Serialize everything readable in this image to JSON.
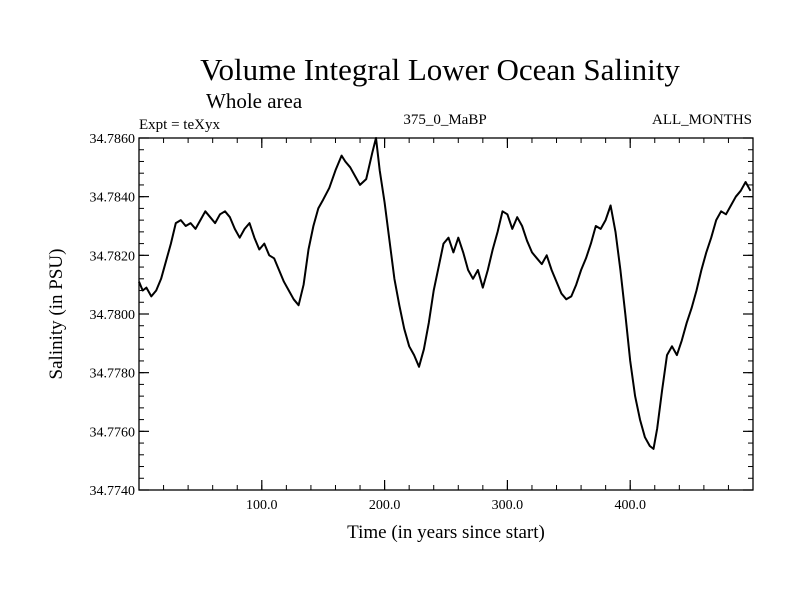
{
  "chart_data": {
    "type": "line",
    "title": "Volume Integral Lower Ocean Salinity",
    "subtitle": "Whole area",
    "annotations": {
      "left": "Expt = teXyx",
      "center": "375_0_MaBP",
      "right": "ALL_MONTHS"
    },
    "xlabel": "Time (in years since start)",
    "ylabel": "Salinity (in PSU)",
    "xlim": [
      0,
      500
    ],
    "ylim": [
      34.774,
      34.786
    ],
    "xticks": [
      100,
      200,
      300,
      400
    ],
    "xtick_labels": [
      "100.0",
      "200.0",
      "300.0",
      "400.0"
    ],
    "yticks": [
      34.774,
      34.776,
      34.778,
      34.78,
      34.782,
      34.784,
      34.786
    ],
    "ytick_labels": [
      "34.7740",
      "34.7760",
      "34.7780",
      "34.7800",
      "34.7820",
      "34.7840",
      "34.7860"
    ],
    "x_minor_step": 20,
    "y_minor_step": 0.0004,
    "grid": false,
    "line_color": "#000000",
    "series": [
      {
        "x": [
          0,
          3,
          6,
          10,
          14,
          18,
          22,
          26,
          30,
          34,
          38,
          42,
          46,
          50,
          54,
          58,
          62,
          66,
          70,
          74,
          78,
          82,
          86,
          90,
          94,
          98,
          102,
          106,
          110,
          114,
          118,
          122,
          126,
          130,
          134,
          138,
          142,
          146,
          150,
          155,
          160,
          165,
          168,
          172,
          176,
          180,
          185,
          190,
          193,
          196,
          200,
          204,
          208,
          212,
          216,
          220,
          224,
          228,
          232,
          236,
          240,
          244,
          248,
          252,
          256,
          260,
          264,
          268,
          272,
          276,
          280,
          284,
          288,
          292,
          296,
          300,
          304,
          308,
          312,
          316,
          320,
          324,
          328,
          332,
          336,
          340,
          344,
          348,
          352,
          356,
          360,
          364,
          368,
          372,
          376,
          380,
          384,
          388,
          392,
          396,
          400,
          404,
          408,
          412,
          416,
          419,
          422,
          426,
          430,
          434,
          438,
          442,
          446,
          450,
          454,
          458,
          462,
          466,
          470,
          474,
          478,
          482,
          486,
          490,
          494,
          498
        ],
        "y": [
          34.7811,
          34.7808,
          34.7809,
          34.7806,
          34.7808,
          34.7812,
          34.7818,
          34.7824,
          34.7831,
          34.7832,
          34.783,
          34.7831,
          34.7829,
          34.7832,
          34.7835,
          34.7833,
          34.7831,
          34.7834,
          34.7835,
          34.7833,
          34.7829,
          34.7826,
          34.7829,
          34.7831,
          34.7826,
          34.7822,
          34.7824,
          34.782,
          34.7819,
          34.7815,
          34.7811,
          34.7808,
          34.7805,
          34.7803,
          34.781,
          34.7822,
          34.783,
          34.7836,
          34.7839,
          34.7843,
          34.7849,
          34.7854,
          34.7852,
          34.785,
          34.7847,
          34.7844,
          34.7846,
          34.7855,
          34.786,
          34.7849,
          34.7838,
          34.7825,
          34.7812,
          34.7803,
          34.7795,
          34.7789,
          34.7786,
          34.7782,
          34.7788,
          34.7797,
          34.7808,
          34.7816,
          34.7824,
          34.7826,
          34.7821,
          34.7826,
          34.7821,
          34.7815,
          34.7812,
          34.7815,
          34.7809,
          34.7815,
          34.7822,
          34.7828,
          34.7835,
          34.7834,
          34.7829,
          34.7833,
          34.783,
          34.7825,
          34.7821,
          34.7819,
          34.7817,
          34.782,
          34.7815,
          34.7811,
          34.7807,
          34.7805,
          34.7806,
          34.781,
          34.7815,
          34.7819,
          34.7824,
          34.783,
          34.7829,
          34.7832,
          34.7837,
          34.7828,
          34.7815,
          34.78,
          34.7784,
          34.7772,
          34.7764,
          34.7758,
          34.7755,
          34.7754,
          34.7761,
          34.7774,
          34.7786,
          34.7789,
          34.7786,
          34.7791,
          34.7797,
          34.7802,
          34.7808,
          34.7815,
          34.7821,
          34.7826,
          34.7832,
          34.7835,
          34.7834,
          34.7837,
          34.784,
          34.7842,
          34.7845,
          34.7842
        ]
      }
    ]
  }
}
